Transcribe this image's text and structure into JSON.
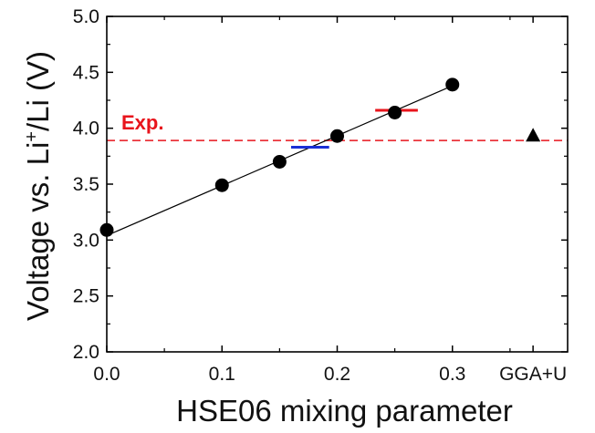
{
  "chart_data": {
    "type": "scatter",
    "xlabel": "HSE06 mixing parameter",
    "ylabel_main": "Voltage vs. Li",
    "ylabel_sup": "+",
    "ylabel_tail": "/Li (V)",
    "xlim": [
      0.0,
      0.4
    ],
    "ylim": [
      2.0,
      5.0
    ],
    "x_ticks": [
      {
        "value": 0.0,
        "label": "0.0"
      },
      {
        "value": 0.1,
        "label": "0.1"
      },
      {
        "value": 0.2,
        "label": "0.2"
      },
      {
        "value": 0.3,
        "label": "0.3"
      },
      {
        "value": 0.37,
        "label": "GGA+U"
      }
    ],
    "y_ticks": [
      {
        "value": 2.0,
        "label": "2.0"
      },
      {
        "value": 2.5,
        "label": "2.5"
      },
      {
        "value": 3.0,
        "label": "3.0"
      },
      {
        "value": 3.5,
        "label": "3.5"
      },
      {
        "value": 4.0,
        "label": "4.0"
      },
      {
        "value": 4.5,
        "label": "4.5"
      },
      {
        "value": 5.0,
        "label": "5.0"
      }
    ],
    "series": [
      {
        "marker": "circle",
        "color": "#000000",
        "x": [
          0.0,
          0.1,
          0.15,
          0.2,
          0.25,
          0.3
        ],
        "y": [
          3.09,
          3.49,
          3.7,
          3.93,
          4.14,
          4.39
        ]
      },
      {
        "marker": "triangle",
        "color": "#000000",
        "x": [
          0.37
        ],
        "y": [
          3.93
        ]
      }
    ],
    "fit_line": {
      "x": [
        0.0,
        0.3
      ],
      "y": [
        3.04,
        4.38
      ],
      "color": "#000000"
    },
    "reference_line": {
      "y": 3.89,
      "label": "Exp.",
      "color": "#e8141c",
      "style": "dashed"
    },
    "segments": [
      {
        "x": [
          0.16,
          0.193
        ],
        "y": 3.83,
        "color": "#1a2fd6"
      },
      {
        "x": [
          0.233,
          0.27
        ],
        "y": 4.16,
        "color": "#e8141c"
      }
    ],
    "grid": false
  }
}
